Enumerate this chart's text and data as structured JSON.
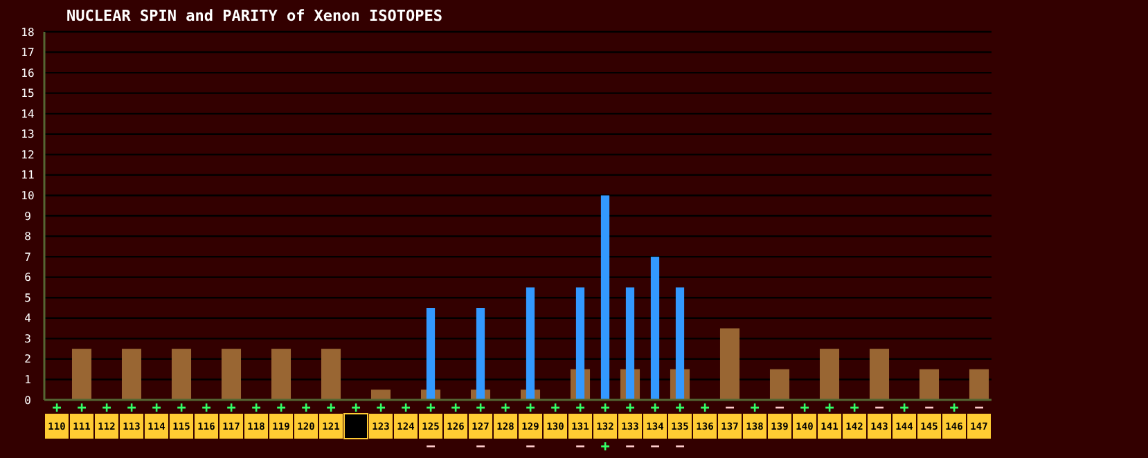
{
  "chart_data": {
    "type": "bar",
    "title": "NUCLEAR SPIN and PARITY of Xenon ISOTOPES",
    "categories": [
      "110",
      "111",
      "112",
      "113",
      "114",
      "115",
      "116",
      "117",
      "118",
      "119",
      "120",
      "121",
      null,
      "123",
      "124",
      "125",
      "126",
      "127",
      "128",
      "129",
      "130",
      "131",
      "132",
      "133",
      "134",
      "135",
      "136",
      "137",
      "138",
      "139",
      "140",
      "141",
      "142",
      "143",
      "144",
      "145",
      "146",
      "147"
    ],
    "series": [
      {
        "color": "#996633",
        "values": [
          0,
          2.5,
          0,
          2.5,
          0,
          2.5,
          0,
          2.5,
          0,
          2.5,
          0,
          2.5,
          0,
          0.5,
          0,
          0.5,
          0,
          0.5,
          0,
          0.5,
          0,
          1.5,
          0,
          1.5,
          0,
          1.5,
          0,
          3.5,
          0,
          1.5,
          0,
          2.5,
          0,
          2.5,
          0,
          1.5,
          0,
          1.5
        ],
        "value_labels": [
          "+",
          "+",
          "+",
          "+",
          "+",
          "+",
          "+",
          "+",
          "+",
          "+",
          "+",
          "+",
          "+",
          "+",
          "+",
          "+",
          "+",
          "+",
          "+",
          "+",
          "+",
          "+",
          "+",
          "+",
          "+",
          "+",
          "+",
          "−",
          "+",
          "−",
          "+",
          "+",
          "+",
          "−",
          "+",
          "−",
          "+",
          "−"
        ]
      },
      {
        "color": "#3399ff",
        "values": [
          null,
          null,
          null,
          null,
          null,
          null,
          null,
          null,
          null,
          null,
          null,
          null,
          null,
          null,
          null,
          4.5,
          null,
          4.5,
          null,
          5.5,
          null,
          5.5,
          10,
          5.5,
          7,
          5.5,
          null,
          null,
          null,
          null,
          null,
          null,
          null,
          null,
          null,
          null,
          null,
          null
        ],
        "value_labels": [
          null,
          null,
          null,
          null,
          null,
          null,
          null,
          null,
          null,
          null,
          null,
          null,
          null,
          null,
          null,
          "−",
          null,
          "−",
          null,
          "−",
          null,
          "−",
          "+",
          "−",
          "−",
          "−",
          null,
          null,
          null,
          null,
          null,
          null,
          null,
          null,
          null,
          null,
          null,
          null
        ]
      }
    ],
    "ylim": [
      0,
      18
    ],
    "yticks": [
      0,
      1,
      2,
      3,
      4,
      5,
      6,
      7,
      8,
      9,
      10,
      11,
      12,
      13,
      14,
      15,
      16,
      17,
      18
    ],
    "grid": "y"
  }
}
